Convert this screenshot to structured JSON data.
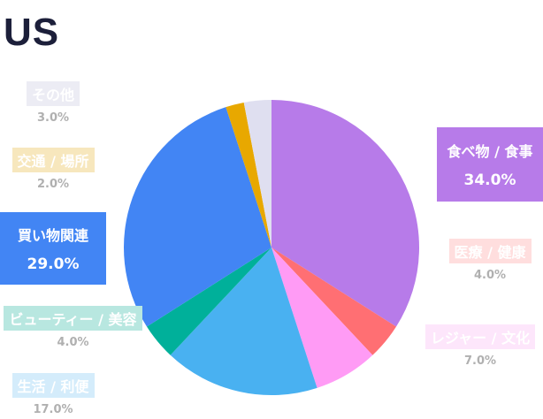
{
  "chart_data": {
    "type": "pie",
    "title": "US",
    "slices": [
      {
        "label": "食べ物 / 食事",
        "value": 34.0,
        "display": "34.0%",
        "color": "#b77be9",
        "label_bg": "#b77be9",
        "label_color": "#ffffff",
        "style": "big"
      },
      {
        "label": "医療 / 健康",
        "value": 4.0,
        "display": "4.0%",
        "color": "#ff6f73",
        "label_bg": "#ffdede",
        "label_color": "#ffffff",
        "style": "small"
      },
      {
        "label": "レジャー / 文化",
        "value": 7.0,
        "display": "7.0%",
        "color": "#ff9bf5",
        "label_bg": "#fde6fb",
        "label_color": "#ffffff",
        "style": "small"
      },
      {
        "label": "生活 / 利便",
        "value": 17.0,
        "display": "17.0%",
        "color": "#49b1f1",
        "label_bg": "#d4ecfb",
        "label_color": "#ffffff",
        "style": "small"
      },
      {
        "label": "ビューティー / 美容",
        "value": 4.0,
        "display": "4.0%",
        "color": "#00b09a",
        "label_bg": "#b8e7e0",
        "label_color": "#ffffff",
        "style": "small"
      },
      {
        "label": "買い物関連",
        "value": 29.0,
        "display": "29.0%",
        "color": "#4285f4",
        "label_bg": "#4285f4",
        "label_color": "#ffffff",
        "style": "big"
      },
      {
        "label": "交通 / 場所",
        "value": 2.0,
        "display": "2.0%",
        "color": "#e8a800",
        "label_bg": "#f7e7bd",
        "label_color": "#ffffff",
        "style": "small"
      },
      {
        "label": "その他",
        "value": 3.0,
        "display": "3.0%",
        "color": "#dfdff0",
        "label_bg": "#ececf4",
        "label_color": "#ffffff",
        "style": "small"
      }
    ]
  }
}
